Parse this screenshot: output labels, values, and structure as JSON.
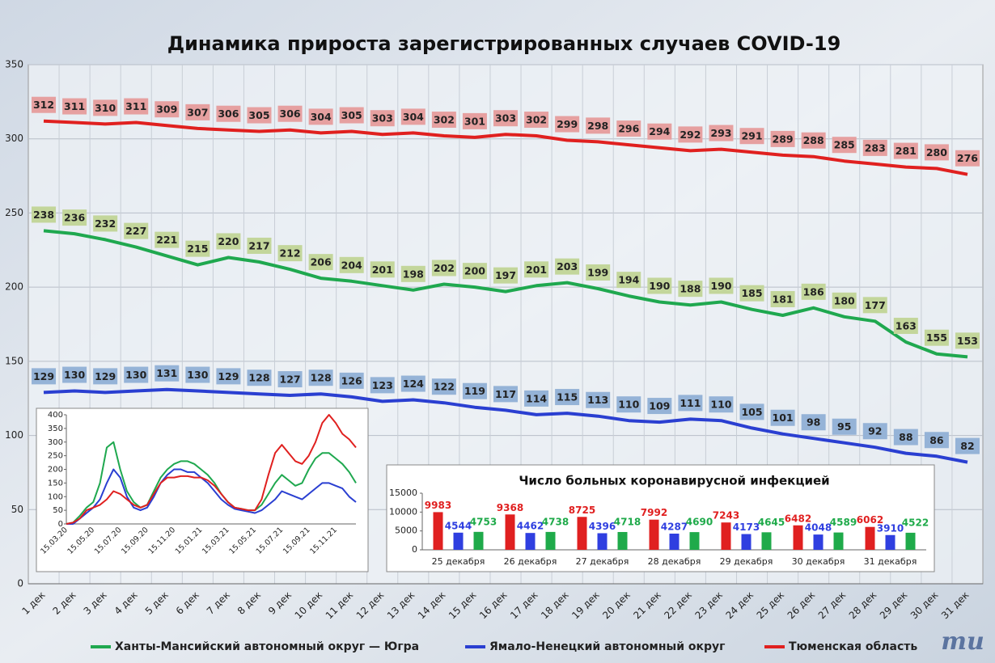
{
  "title": "Динамика прироста зарегистрированных случаев COVID-19",
  "logo": "mu",
  "chart_data": [
    {
      "type": "line",
      "categories": [
        "1 дек",
        "2 дек",
        "3 дек",
        "4 дек",
        "5 дек",
        "6 дек",
        "7 дек",
        "8 дек",
        "9 дек",
        "10 дек",
        "11 дек",
        "12 дек",
        "13 дек",
        "14 дек",
        "15 дек",
        "16 дек",
        "17 дек",
        "18 дек",
        "19 дек",
        "20 дек",
        "21 дек",
        "22 дек",
        "23 дек",
        "24 дек",
        "25 дек",
        "26 дек",
        "27 дек",
        "28 дек",
        "29 дек",
        "30 дек",
        "31 дек"
      ],
      "series": [
        {
          "name": "Ханты-Мансийский автономный округ — Югра",
          "color": "#1fa84f",
          "label_color": "#c3d69b",
          "values": [
            238,
            236,
            232,
            227,
            221,
            215,
            220,
            217,
            212,
            206,
            204,
            201,
            198,
            202,
            200,
            197,
            201,
            203,
            199,
            194,
            190,
            188,
            190,
            185,
            181,
            186,
            180,
            177,
            163,
            155,
            153
          ]
        },
        {
          "name": "Ямало-Ненецкий автономный округ",
          "color": "#2a3fd1",
          "label_color": "#95b3d7",
          "values": [
            129,
            130,
            129,
            130,
            131,
            130,
            129,
            128,
            127,
            128,
            126,
            123,
            124,
            122,
            119,
            117,
            114,
            115,
            113,
            110,
            109,
            111,
            110,
            105,
            101,
            98,
            95,
            92,
            88,
            86,
            82
          ]
        },
        {
          "name": "Тюменская область",
          "color": "#e0201f",
          "label_color": "#e6a0a0",
          "values": [
            312,
            311,
            310,
            311,
            309,
            307,
            306,
            305,
            306,
            304,
            305,
            303,
            304,
            302,
            301,
            303,
            302,
            299,
            298,
            296,
            294,
            292,
            293,
            291,
            289,
            288,
            285,
            283,
            281,
            280,
            276
          ]
        }
      ],
      "ylim": [
        0,
        350
      ],
      "yticks": [
        0,
        50,
        100,
        150,
        200,
        250,
        300,
        350
      ],
      "grid": true
    },
    {
      "type": "line",
      "categories": [
        "15.03.20",
        null,
        null,
        null,
        "15.05.20",
        null,
        null,
        null,
        "15.07.20",
        null,
        null,
        null,
        "15.09.20",
        null,
        null,
        null,
        "15.11.20",
        null,
        null,
        null,
        "15.01.21",
        null,
        null,
        null,
        "15.03.21",
        null,
        null,
        null,
        "15.05.21",
        null,
        null,
        null,
        "15.07.21",
        null,
        null,
        null,
        "15.09.21",
        null,
        null,
        null,
        "15.11.21",
        null,
        null,
        null
      ],
      "series": [
        {
          "color": "#1fa84f",
          "values": [
            0,
            5,
            30,
            60,
            80,
            150,
            280,
            300,
            200,
            120,
            80,
            60,
            70,
            120,
            170,
            200,
            220,
            230,
            230,
            220,
            200,
            180,
            150,
            110,
            80,
            60,
            55,
            50,
            50,
            70,
            110,
            150,
            180,
            160,
            140,
            150,
            200,
            240,
            260,
            260,
            240,
            220,
            190,
            150
          ]
        },
        {
          "color": "#2a3fd1",
          "values": [
            0,
            0,
            20,
            40,
            60,
            90,
            150,
            200,
            170,
            100,
            60,
            50,
            60,
            100,
            150,
            180,
            200,
            200,
            190,
            190,
            170,
            150,
            120,
            90,
            70,
            55,
            50,
            45,
            40,
            50,
            70,
            90,
            120,
            110,
            100,
            90,
            110,
            130,
            150,
            150,
            140,
            130,
            100,
            80
          ]
        },
        {
          "color": "#e0201f",
          "values": [
            0,
            5,
            20,
            50,
            60,
            70,
            90,
            120,
            110,
            90,
            70,
            60,
            70,
            110,
            150,
            170,
            170,
            175,
            175,
            170,
            170,
            160,
            140,
            110,
            80,
            60,
            55,
            50,
            50,
            90,
            180,
            260,
            290,
            260,
            230,
            220,
            250,
            300,
            370,
            400,
            370,
            330,
            310,
            280
          ]
        }
      ],
      "ylim": [
        0,
        400
      ],
      "yticks": [
        0,
        50,
        100,
        150,
        200,
        250,
        300,
        350,
        400
      ]
    },
    {
      "type": "bar",
      "title": "Число больных коронавирусной  инфекцией",
      "categories": [
        "25 декабря",
        "26 декабря",
        "27 декабря",
        "28 декабря",
        "29 декабря",
        "30 декабря",
        "31 декабря"
      ],
      "series": [
        {
          "color": "#e02020",
          "values": [
            9983,
            9368,
            8725,
            7992,
            7243,
            6482,
            6062
          ]
        },
        {
          "color": "#2f3fe0",
          "values": [
            4544,
            4462,
            4396,
            4287,
            4173,
            4048,
            3910
          ]
        },
        {
          "color": "#1faa4a",
          "values": [
            4753,
            4738,
            4718,
            4690,
            4645,
            4589,
            4522
          ]
        }
      ],
      "ylim": [
        0,
        15000
      ],
      "yticks": [
        0,
        5000,
        10000,
        15000
      ]
    }
  ]
}
